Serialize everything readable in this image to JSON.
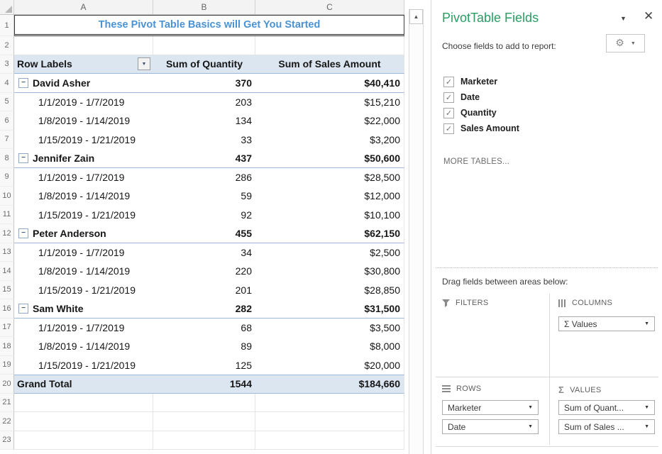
{
  "colors": {
    "pane-green": "#2a9d63",
    "title-blue": "#4b92d4",
    "pivot-fill": "#dce6f1",
    "pivot-border": "#9cb8da"
  },
  "icons": {
    "close-icon": "✕",
    "pane-collapse-icon": "▼",
    "gear-icon": "⚙",
    "dropdown-caret-icon": "▼",
    "checkbox-check-icon": "✓",
    "collapse-minus-icon": "−",
    "scroll-up-icon": "▲",
    "sigma-icon": "Σ"
  },
  "spreadsheet": {
    "column_headers": [
      "A",
      "B",
      "C"
    ],
    "row_count": 23,
    "title": "These Pivot Table Basics will Get You Started",
    "pivot_table": {
      "title_row": 1,
      "header_row": 3,
      "first_data_row": 4,
      "headers": [
        "Row Labels",
        "Sum of Quantity",
        "Sum of Sales Amount"
      ],
      "rows": [
        {
          "type": "group",
          "label": "David Asher",
          "quantity": "370",
          "sales": "$40,410"
        },
        {
          "type": "detail",
          "label": "1/1/2019 - 1/7/2019",
          "quantity": "203",
          "sales": "$15,210"
        },
        {
          "type": "detail",
          "label": "1/8/2019 - 1/14/2019",
          "quantity": "134",
          "sales": "$22,000"
        },
        {
          "type": "detail",
          "label": "1/15/2019 - 1/21/2019",
          "quantity": "33",
          "sales": "$3,200"
        },
        {
          "type": "group",
          "label": "Jennifer Zain",
          "quantity": "437",
          "sales": "$50,600"
        },
        {
          "type": "detail",
          "label": "1/1/2019 - 1/7/2019",
          "quantity": "286",
          "sales": "$28,500"
        },
        {
          "type": "detail",
          "label": "1/8/2019 - 1/14/2019",
          "quantity": "59",
          "sales": "$12,000"
        },
        {
          "type": "detail",
          "label": "1/15/2019 - 1/21/2019",
          "quantity": "92",
          "sales": "$10,100"
        },
        {
          "type": "group",
          "label": "Peter Anderson",
          "quantity": "455",
          "sales": "$62,150"
        },
        {
          "type": "detail",
          "label": "1/1/2019 - 1/7/2019",
          "quantity": "34",
          "sales": "$2,500"
        },
        {
          "type": "detail",
          "label": "1/8/2019 - 1/14/2019",
          "quantity": "220",
          "sales": "$30,800"
        },
        {
          "type": "detail",
          "label": "1/15/2019 - 1/21/2019",
          "quantity": "201",
          "sales": "$28,850"
        },
        {
          "type": "group",
          "label": "Sam White",
          "quantity": "282",
          "sales": "$31,500"
        },
        {
          "type": "detail",
          "label": "1/1/2019 - 1/7/2019",
          "quantity": "68",
          "sales": "$3,500"
        },
        {
          "type": "detail",
          "label": "1/8/2019 - 1/14/2019",
          "quantity": "89",
          "sales": "$8,000"
        },
        {
          "type": "detail",
          "label": "1/15/2019 - 1/21/2019",
          "quantity": "125",
          "sales": "$20,000"
        },
        {
          "type": "grand",
          "label": "Grand Total",
          "quantity": "1544",
          "sales": "$184,660"
        }
      ]
    }
  },
  "panel": {
    "title": "PivotTable Fields",
    "choose_fields_label": "Choose fields to add to report:",
    "fields": [
      {
        "label": "Marketer",
        "checked": true
      },
      {
        "label": "Date",
        "checked": true
      },
      {
        "label": "Quantity",
        "checked": true
      },
      {
        "label": "Sales Amount",
        "checked": true
      }
    ],
    "more_tables_label": "MORE TABLES...",
    "drag_label": "Drag fields between areas below:",
    "areas": {
      "filters": {
        "label": "FILTERS",
        "items": []
      },
      "columns": {
        "label": "COLUMNS",
        "items": [
          "Σ Values"
        ]
      },
      "rows": {
        "label": "ROWS",
        "items": [
          "Marketer",
          "Date"
        ]
      },
      "values": {
        "label": "VALUES",
        "items": [
          "Sum of Quant...",
          "Sum of Sales ..."
        ]
      }
    }
  }
}
